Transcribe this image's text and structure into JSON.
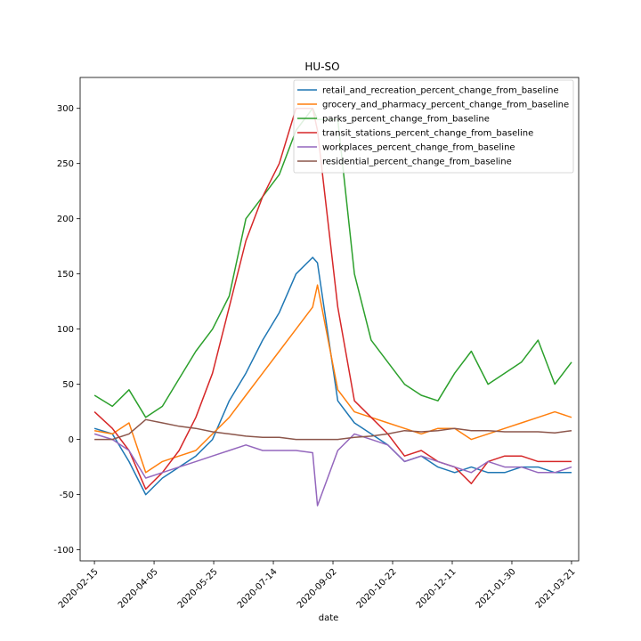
{
  "chart_data": {
    "type": "line",
    "title": "HU-SO",
    "xlabel": "date",
    "ylabel": "",
    "xlim": [
      "2020-02-03",
      "2021-03-27"
    ],
    "ylim": [
      -110,
      328
    ],
    "grid": false,
    "legend_position": "top-right",
    "x_ticks": [
      "2020-02-15",
      "2020-04-05",
      "2020-05-25",
      "2020-07-14",
      "2020-09-02",
      "2020-10-22",
      "2020-12-11",
      "2021-01-30",
      "2021-03-21"
    ],
    "y_ticks": [
      -100,
      -50,
      0,
      50,
      100,
      150,
      200,
      250,
      300
    ],
    "series": [
      {
        "name": "retail_and_recreation_percent_change_from_baseline",
        "color": "#1f77b4",
        "points": [
          [
            "2020-02-15",
            10
          ],
          [
            "2020-03-01",
            5
          ],
          [
            "2020-03-15",
            -20
          ],
          [
            "2020-03-29",
            -50
          ],
          [
            "2020-04-12",
            -35
          ],
          [
            "2020-04-26",
            -25
          ],
          [
            "2020-05-10",
            -15
          ],
          [
            "2020-05-24",
            0
          ],
          [
            "2020-06-07",
            35
          ],
          [
            "2020-06-21",
            60
          ],
          [
            "2020-07-05",
            90
          ],
          [
            "2020-07-19",
            115
          ],
          [
            "2020-08-02",
            150
          ],
          [
            "2020-08-16",
            165
          ],
          [
            "2020-08-20",
            160
          ],
          [
            "2020-09-06",
            35
          ],
          [
            "2020-09-20",
            15
          ],
          [
            "2020-10-04",
            5
          ],
          [
            "2020-10-18",
            -5
          ],
          [
            "2020-11-01",
            -20
          ],
          [
            "2020-11-15",
            -15
          ],
          [
            "2020-11-29",
            -25
          ],
          [
            "2020-12-13",
            -30
          ],
          [
            "2020-12-27",
            -25
          ],
          [
            "2021-01-10",
            -30
          ],
          [
            "2021-01-24",
            -30
          ],
          [
            "2021-02-07",
            -25
          ],
          [
            "2021-02-21",
            -25
          ],
          [
            "2021-03-07",
            -30
          ],
          [
            "2021-03-21",
            -30
          ]
        ]
      },
      {
        "name": "grocery_and_pharmacy_percent_change_from_baseline",
        "color": "#ff7f0e",
        "points": [
          [
            "2020-02-15",
            8
          ],
          [
            "2020-03-01",
            5
          ],
          [
            "2020-03-15",
            15
          ],
          [
            "2020-03-29",
            -30
          ],
          [
            "2020-04-12",
            -20
          ],
          [
            "2020-04-26",
            -15
          ],
          [
            "2020-05-10",
            -10
          ],
          [
            "2020-05-24",
            5
          ],
          [
            "2020-06-07",
            20
          ],
          [
            "2020-06-21",
            40
          ],
          [
            "2020-07-05",
            60
          ],
          [
            "2020-07-19",
            80
          ],
          [
            "2020-08-02",
            100
          ],
          [
            "2020-08-16",
            120
          ],
          [
            "2020-08-20",
            140
          ],
          [
            "2020-09-06",
            45
          ],
          [
            "2020-09-20",
            25
          ],
          [
            "2020-10-04",
            20
          ],
          [
            "2020-10-18",
            15
          ],
          [
            "2020-11-01",
            10
          ],
          [
            "2020-11-15",
            5
          ],
          [
            "2020-11-29",
            10
          ],
          [
            "2020-12-13",
            10
          ],
          [
            "2020-12-27",
            0
          ],
          [
            "2021-01-10",
            5
          ],
          [
            "2021-01-24",
            10
          ],
          [
            "2021-02-07",
            15
          ],
          [
            "2021-02-21",
            20
          ],
          [
            "2021-03-07",
            25
          ],
          [
            "2021-03-21",
            20
          ]
        ]
      },
      {
        "name": "parks_percent_change_from_baseline",
        "color": "#2ca02c",
        "points": [
          [
            "2020-02-15",
            40
          ],
          [
            "2020-03-01",
            30
          ],
          [
            "2020-03-15",
            45
          ],
          [
            "2020-03-29",
            20
          ],
          [
            "2020-04-12",
            30
          ],
          [
            "2020-04-26",
            55
          ],
          [
            "2020-05-10",
            80
          ],
          [
            "2020-05-24",
            100
          ],
          [
            "2020-06-07",
            130
          ],
          [
            "2020-06-21",
            200
          ],
          [
            "2020-07-05",
            220
          ],
          [
            "2020-07-19",
            240
          ],
          [
            "2020-08-02",
            280
          ],
          [
            "2020-08-16",
            300
          ],
          [
            "2020-08-20",
            290
          ],
          [
            "2020-09-06",
            290
          ],
          [
            "2020-09-20",
            150
          ],
          [
            "2020-10-04",
            90
          ],
          [
            "2020-10-18",
            70
          ],
          [
            "2020-11-01",
            50
          ],
          [
            "2020-11-15",
            40
          ],
          [
            "2020-11-29",
            35
          ],
          [
            "2020-12-13",
            60
          ],
          [
            "2020-12-27",
            80
          ],
          [
            "2021-01-10",
            50
          ],
          [
            "2021-01-24",
            60
          ],
          [
            "2021-02-07",
            70
          ],
          [
            "2021-02-21",
            90
          ],
          [
            "2021-03-07",
            50
          ],
          [
            "2021-03-21",
            70
          ]
        ]
      },
      {
        "name": "transit_stations_percent_change_from_baseline",
        "color": "#d62728",
        "points": [
          [
            "2020-02-15",
            25
          ],
          [
            "2020-03-01",
            10
          ],
          [
            "2020-03-15",
            -10
          ],
          [
            "2020-03-29",
            -45
          ],
          [
            "2020-04-12",
            -30
          ],
          [
            "2020-04-26",
            -10
          ],
          [
            "2020-05-10",
            20
          ],
          [
            "2020-05-24",
            60
          ],
          [
            "2020-06-07",
            120
          ],
          [
            "2020-06-21",
            180
          ],
          [
            "2020-07-05",
            220
          ],
          [
            "2020-07-19",
            250
          ],
          [
            "2020-08-02",
            300
          ],
          [
            "2020-08-16",
            300
          ],
          [
            "2020-08-20",
            280
          ],
          [
            "2020-09-06",
            120
          ],
          [
            "2020-09-20",
            35
          ],
          [
            "2020-10-04",
            20
          ],
          [
            "2020-10-18",
            5
          ],
          [
            "2020-11-01",
            -15
          ],
          [
            "2020-11-15",
            -10
          ],
          [
            "2020-11-29",
            -20
          ],
          [
            "2020-12-13",
            -25
          ],
          [
            "2020-12-27",
            -40
          ],
          [
            "2021-01-10",
            -20
          ],
          [
            "2021-01-24",
            -15
          ],
          [
            "2021-02-07",
            -15
          ],
          [
            "2021-02-21",
            -20
          ],
          [
            "2021-03-07",
            -20
          ],
          [
            "2021-03-21",
            -20
          ]
        ]
      },
      {
        "name": "workplaces_percent_change_from_baseline",
        "color": "#9467bd",
        "points": [
          [
            "2020-02-15",
            5
          ],
          [
            "2020-03-01",
            0
          ],
          [
            "2020-03-15",
            -10
          ],
          [
            "2020-03-29",
            -35
          ],
          [
            "2020-04-12",
            -30
          ],
          [
            "2020-04-26",
            -25
          ],
          [
            "2020-05-10",
            -20
          ],
          [
            "2020-05-24",
            -15
          ],
          [
            "2020-06-07",
            -10
          ],
          [
            "2020-06-21",
            -5
          ],
          [
            "2020-07-05",
            -10
          ],
          [
            "2020-07-19",
            -10
          ],
          [
            "2020-08-02",
            -10
          ],
          [
            "2020-08-16",
            -12
          ],
          [
            "2020-08-20",
            -60
          ],
          [
            "2020-09-06",
            -10
          ],
          [
            "2020-09-20",
            5
          ],
          [
            "2020-10-04",
            0
          ],
          [
            "2020-10-18",
            -5
          ],
          [
            "2020-11-01",
            -20
          ],
          [
            "2020-11-15",
            -15
          ],
          [
            "2020-11-29",
            -20
          ],
          [
            "2020-12-13",
            -25
          ],
          [
            "2020-12-27",
            -30
          ],
          [
            "2021-01-10",
            -20
          ],
          [
            "2021-01-24",
            -25
          ],
          [
            "2021-02-07",
            -25
          ],
          [
            "2021-02-21",
            -30
          ],
          [
            "2021-03-07",
            -30
          ],
          [
            "2021-03-21",
            -25
          ]
        ]
      },
      {
        "name": "residential_percent_change_from_baseline",
        "color": "#8c564b",
        "points": [
          [
            "2020-02-15",
            0
          ],
          [
            "2020-03-01",
            0
          ],
          [
            "2020-03-15",
            5
          ],
          [
            "2020-03-29",
            18
          ],
          [
            "2020-04-12",
            15
          ],
          [
            "2020-04-26",
            12
          ],
          [
            "2020-05-10",
            10
          ],
          [
            "2020-05-24",
            7
          ],
          [
            "2020-06-07",
            5
          ],
          [
            "2020-06-21",
            3
          ],
          [
            "2020-07-05",
            2
          ],
          [
            "2020-07-19",
            2
          ],
          [
            "2020-08-02",
            0
          ],
          [
            "2020-08-16",
            0
          ],
          [
            "2020-08-20",
            0
          ],
          [
            "2020-09-06",
            0
          ],
          [
            "2020-09-20",
            2
          ],
          [
            "2020-10-04",
            3
          ],
          [
            "2020-10-18",
            5
          ],
          [
            "2020-11-01",
            8
          ],
          [
            "2020-11-15",
            7
          ],
          [
            "2020-11-29",
            8
          ],
          [
            "2020-12-13",
            10
          ],
          [
            "2020-12-27",
            8
          ],
          [
            "2021-01-10",
            8
          ],
          [
            "2021-01-24",
            7
          ],
          [
            "2021-02-07",
            7
          ],
          [
            "2021-02-21",
            7
          ],
          [
            "2021-03-07",
            6
          ],
          [
            "2021-03-21",
            8
          ]
        ]
      }
    ]
  }
}
